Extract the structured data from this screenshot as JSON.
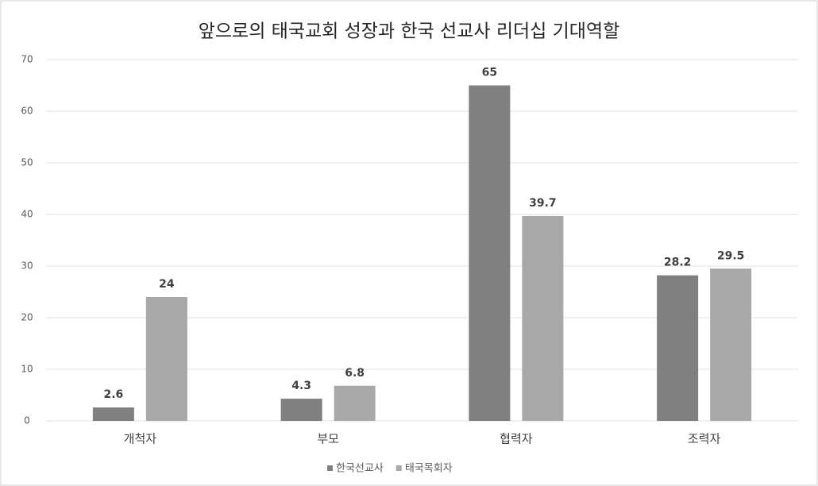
{
  "chart_data": {
    "type": "bar",
    "title": "앞으로의 태국교회 성장과 한국 선교사 리더십 기대역할",
    "categories": [
      "개척자",
      "부모",
      "협력자",
      "조력자"
    ],
    "series": [
      {
        "name": "한국선교사",
        "color": "#808080",
        "values": [
          2.6,
          4.3,
          65,
          28.2
        ]
      },
      {
        "name": "태국목회자",
        "color": "#a8a8a8",
        "values": [
          24,
          6.8,
          39.7,
          29.5
        ]
      }
    ],
    "ylim": [
      0,
      70
    ],
    "yticks": [
      0,
      10,
      20,
      30,
      40,
      50,
      60,
      70
    ],
    "grid": true,
    "legend": "bottom"
  }
}
